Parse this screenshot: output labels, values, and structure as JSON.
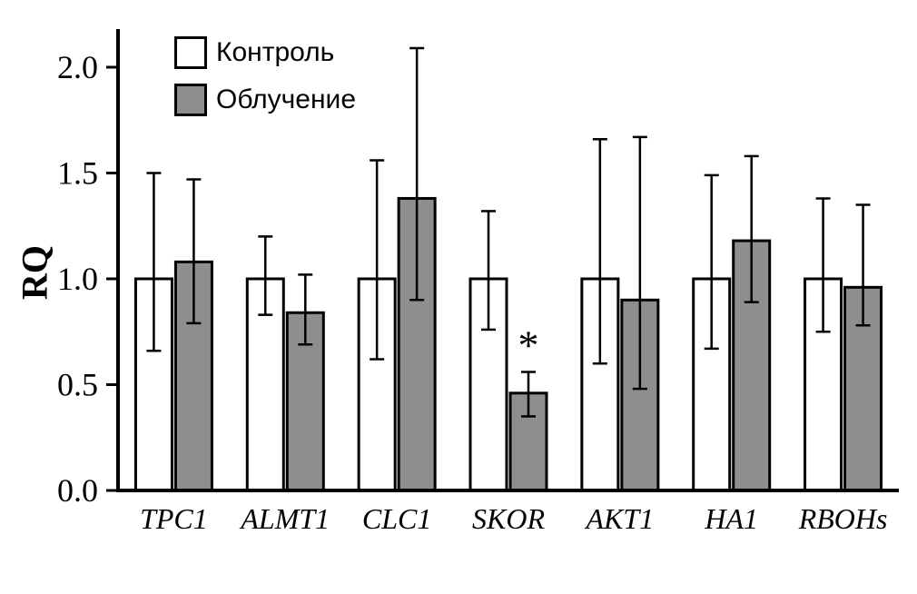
{
  "figure": {
    "background": "#ffffff",
    "axis_color": "#000000"
  },
  "legend": {
    "items": [
      {
        "label": "Контроль",
        "color": "#ffffff"
      },
      {
        "label": "Облучение",
        "color": "#8e8e8e"
      }
    ]
  },
  "chart_data": {
    "type": "bar",
    "title": "",
    "xlabel": "",
    "ylabel": "RQ",
    "ylim": [
      0,
      2.0
    ],
    "ytick_values": [
      0.0,
      0.5,
      1.0,
      1.5,
      2.0
    ],
    "ytick_labels": [
      "0.0",
      "0.5",
      "1.0",
      "1.5",
      "2.0"
    ],
    "grid": false,
    "legend_position": "top-left",
    "categories": [
      "TPC1",
      "ALMT1",
      "CLC1",
      "SKOR",
      "AKT1",
      "HA1",
      "RBOHs"
    ],
    "series": [
      {
        "name": "Контроль",
        "color": "#ffffff",
        "values": [
          1.0,
          1.0,
          1.0,
          1.0,
          1.0,
          1.0,
          1.0
        ],
        "error_plus": [
          0.5,
          0.2,
          0.56,
          0.32,
          0.66,
          0.49,
          0.38
        ],
        "error_minus": [
          0.34,
          0.17,
          0.38,
          0.24,
          0.4,
          0.33,
          0.25
        ]
      },
      {
        "name": "Облучение",
        "color": "#8e8e8e",
        "values": [
          1.08,
          0.84,
          1.38,
          0.46,
          0.9,
          1.18,
          0.96
        ],
        "error_plus": [
          0.39,
          0.18,
          0.71,
          0.1,
          0.77,
          0.4,
          0.39
        ],
        "error_minus": [
          0.29,
          0.15,
          0.48,
          0.11,
          0.42,
          0.29,
          0.18
        ]
      }
    ],
    "annotations": [
      {
        "series_index": 1,
        "category_index": 3,
        "text": "*",
        "meaning": "significant-difference"
      }
    ]
  }
}
